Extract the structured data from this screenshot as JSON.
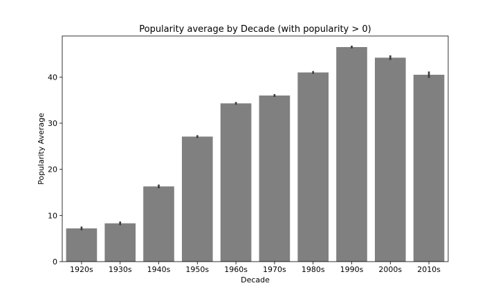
{
  "chart_data": {
    "type": "bar",
    "title": "Popularity average by Decade (with popularity > 0)",
    "xlabel": "Decade",
    "ylabel": "Popularity Average",
    "categories": [
      "1920s",
      "1930s",
      "1940s",
      "1950s",
      "1960s",
      "1970s",
      "1980s",
      "1990s",
      "2000s",
      "2010s"
    ],
    "values": [
      7.2,
      8.3,
      16.3,
      27.1,
      34.3,
      36.0,
      41.0,
      46.5,
      44.2,
      40.5
    ],
    "error_low": [
      6.8,
      7.9,
      15.9,
      26.8,
      34.0,
      35.7,
      40.7,
      46.2,
      43.7,
      39.8
    ],
    "error_high": [
      7.6,
      8.7,
      16.7,
      27.4,
      34.6,
      36.3,
      41.3,
      46.8,
      44.7,
      41.2
    ],
    "ylim": [
      0,
      48.9
    ],
    "yticks": [
      0,
      10,
      20,
      30,
      40
    ],
    "grid": false,
    "legend": "none",
    "bar_color": "#808080",
    "error_color": "#3f3f3f"
  }
}
